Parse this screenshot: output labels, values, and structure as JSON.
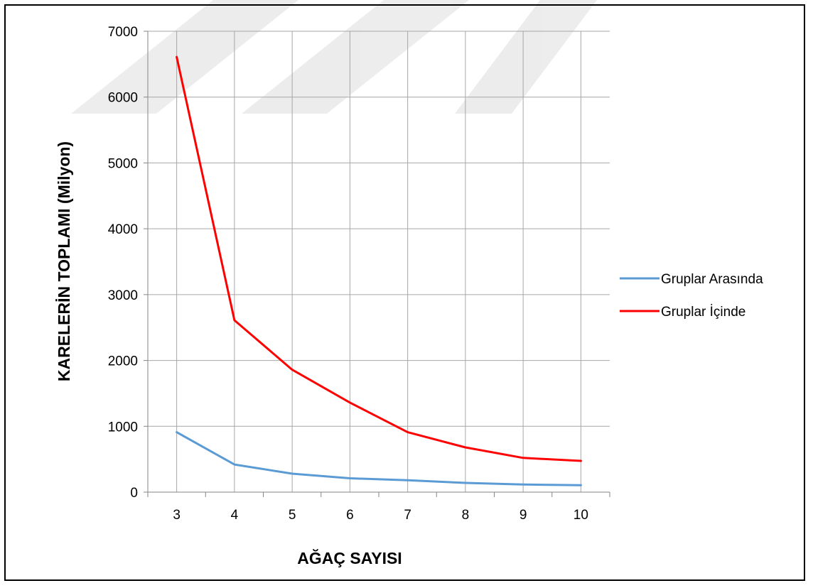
{
  "chart_data": {
    "type": "line",
    "title": "",
    "xlabel": "AĞAÇ SAYISI",
    "ylabel": "KARELERİN TOPLAMI (Milyon)",
    "x": [
      3,
      4,
      5,
      6,
      7,
      8,
      9,
      10
    ],
    "ylim": [
      0,
      7000
    ],
    "yticks": [
      0,
      1000,
      2000,
      3000,
      4000,
      5000,
      6000,
      7000
    ],
    "grid": true,
    "legend_position": "right",
    "series": [
      {
        "name": "Gruplar Arasında",
        "color": "#5b9bd5",
        "values": [
          910,
          420,
          280,
          210,
          180,
          140,
          115,
          105
        ]
      },
      {
        "name": "Gruplar İçinde",
        "color": "#ff0000",
        "values": [
          6610,
          2610,
          1860,
          1360,
          910,
          680,
          520,
          475
        ]
      }
    ]
  }
}
